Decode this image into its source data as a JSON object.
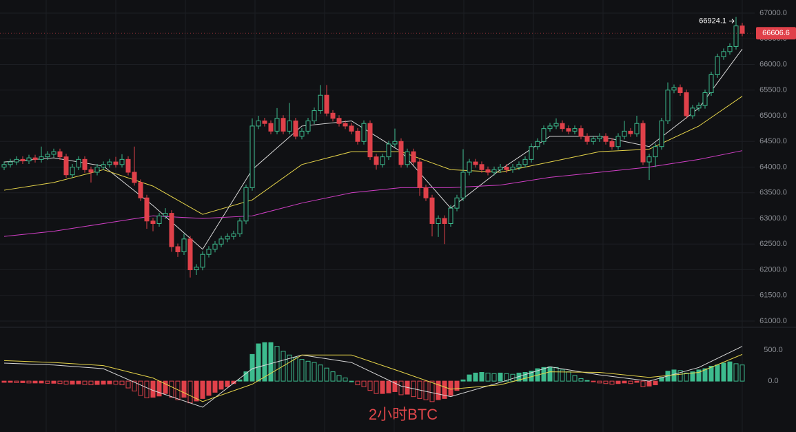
{
  "chart_data": [
    {
      "type": "candlestick",
      "colors": {
        "up": "#3dbb8e",
        "down": "#e0414a"
      },
      "ylim": [
        60880,
        67255
      ],
      "yticks": [
        {
          "value": 61000,
          "label": "61000.0"
        },
        {
          "value": 61500,
          "label": "61500.0"
        },
        {
          "value": 62000,
          "label": "62000.0"
        },
        {
          "value": 62500,
          "label": "62500.0"
        },
        {
          "value": 63000,
          "label": "63000.0"
        },
        {
          "value": 63500,
          "label": "63500.0"
        },
        {
          "value": 64000,
          "label": "64000.0"
        },
        {
          "value": 64500,
          "label": "64500.0"
        },
        {
          "value": 65000,
          "label": "65000.0"
        },
        {
          "value": 65500,
          "label": "65500.0"
        },
        {
          "value": 66000,
          "label": "66000.0"
        },
        {
          "value": 66500,
          "label": "66500.0"
        },
        {
          "value": 67000,
          "label": "67000.0"
        }
      ],
      "grid": true,
      "last_price": 66606.6,
      "high_annotation": 66924.1,
      "open": [
        64000,
        64050,
        64100,
        64150,
        64120,
        64180,
        64150,
        64200,
        64250,
        64300,
        64200,
        63850,
        64000,
        64150,
        63950,
        63900,
        64000,
        64050,
        64100,
        64050,
        64150,
        63900,
        63700,
        63400,
        62950,
        62900,
        63050,
        63100,
        62450,
        62350,
        62600,
        62000,
        62050,
        62300,
        62400,
        62500,
        62600,
        62650,
        62700,
        62950,
        63600,
        64800,
        64900,
        64850,
        64700,
        64950,
        64700,
        64900,
        64600,
        64700,
        64900,
        65100,
        65400,
        65050,
        64950,
        64850,
        64800,
        64700,
        64500,
        64850,
        64200,
        64050,
        64200,
        64450,
        64500,
        64050,
        64300,
        64100,
        63600,
        63400,
        62900,
        63000,
        62900,
        63200,
        63400,
        63900,
        64100,
        64050,
        63950,
        63900,
        63950,
        64000,
        63950,
        64000,
        64050,
        64150,
        64400,
        64500,
        64750,
        64800,
        64850,
        64750,
        64700,
        64750,
        64600,
        64500,
        64550,
        64600,
        64500,
        64400,
        64600,
        64700,
        64650,
        64850,
        64100,
        64200,
        64400,
        64900,
        65500,
        65550,
        65450,
        65000,
        65150,
        65200,
        65450,
        65800,
        66150,
        66250,
        66350,
        66750
      ],
      "high": [
        64110,
        64160,
        64210,
        64210,
        64240,
        64240,
        64400,
        64310,
        64360,
        64360,
        64260,
        64060,
        64210,
        64210,
        64010,
        64060,
        64110,
        64160,
        64200,
        64250,
        64210,
        64400,
        63760,
        63460,
        63010,
        63110,
        63200,
        63160,
        62510,
        62700,
        62660,
        62110,
        62360,
        62460,
        62560,
        62660,
        62710,
        62760,
        63010,
        63660,
        64950,
        65000,
        64960,
        64910,
        65150,
        65010,
        65250,
        64960,
        64760,
        64960,
        65160,
        65600,
        65600,
        65110,
        65010,
        64910,
        64860,
        64760,
        64910,
        64910,
        64260,
        64260,
        64510,
        64750,
        64560,
        64360,
        64360,
        64160,
        63660,
        63460,
        63060,
        63060,
        63260,
        63460,
        64350,
        64160,
        64160,
        64110,
        64010,
        64010,
        64060,
        64060,
        64060,
        64110,
        64210,
        64460,
        64560,
        64810,
        64860,
        64950,
        64910,
        64810,
        64810,
        64810,
        64660,
        64610,
        64660,
        64660,
        64560,
        64660,
        64900,
        64760,
        65000,
        64910,
        64260,
        64460,
        64960,
        65650,
        65610,
        65610,
        65510,
        65210,
        65260,
        65510,
        65860,
        66210,
        66310,
        66410,
        66924.1,
        66810
      ],
      "low": [
        63940,
        63990,
        64040,
        64060,
        64060,
        64090,
        64090,
        64140,
        64190,
        64140,
        63790,
        63790,
        63940,
        63890,
        63700,
        63840,
        63940,
        63990,
        63990,
        63990,
        63840,
        63640,
        63340,
        62800,
        62750,
        62840,
        62990,
        62350,
        62250,
        62290,
        61850,
        61900,
        61990,
        62240,
        62340,
        62440,
        62540,
        62590,
        62640,
        62890,
        63540,
        64740,
        64790,
        64640,
        64640,
        64640,
        64640,
        64540,
        64540,
        64640,
        64840,
        65040,
        64990,
        64890,
        64790,
        64740,
        64640,
        64440,
        64440,
        64140,
        63950,
        63990,
        64140,
        64390,
        63990,
        63990,
        64040,
        63440,
        63340,
        62650,
        62640,
        62500,
        62840,
        63140,
        63340,
        63840,
        63990,
        63890,
        63840,
        63840,
        63890,
        63890,
        63890,
        63940,
        63990,
        64090,
        64340,
        64440,
        64690,
        64740,
        64690,
        64640,
        64640,
        64540,
        64440,
        64440,
        64490,
        64440,
        64340,
        64340,
        64540,
        64590,
        64590,
        64040,
        63750,
        64000,
        64340,
        64840,
        65440,
        65390,
        64940,
        64940,
        65090,
        65140,
        65390,
        65740,
        66090,
        66190,
        66290,
        66550
      ],
      "close": [
        64050,
        64100,
        64150,
        64120,
        64180,
        64150,
        64200,
        64250,
        64300,
        64200,
        63850,
        64000,
        64150,
        63950,
        63900,
        64000,
        64050,
        64100,
        64050,
        64150,
        63900,
        63700,
        63400,
        62950,
        62900,
        63050,
        63100,
        62450,
        62350,
        62600,
        62000,
        62050,
        62300,
        62400,
        62500,
        62600,
        62650,
        62700,
        62950,
        63600,
        64800,
        64900,
        64850,
        64700,
        64950,
        64700,
        64900,
        64600,
        64700,
        64900,
        65100,
        65400,
        65050,
        64950,
        64850,
        64800,
        64700,
        64500,
        64850,
        64200,
        64050,
        64200,
        64450,
        64500,
        64050,
        64300,
        64100,
        63600,
        63400,
        62900,
        63000,
        62900,
        63200,
        63400,
        63900,
        64100,
        64050,
        63950,
        63900,
        63950,
        64000,
        63950,
        64000,
        64050,
        64150,
        64400,
        64500,
        64750,
        64800,
        64850,
        64750,
        64700,
        64750,
        64600,
        64500,
        64550,
        64600,
        64500,
        64400,
        64600,
        64700,
        64650,
        64850,
        64100,
        64200,
        64400,
        64900,
        65500,
        65550,
        65450,
        65000,
        65150,
        65200,
        65450,
        65800,
        66150,
        66250,
        66350,
        66750,
        66606.6
      ],
      "lines": {
        "x": [
          0,
          8,
          16,
          24,
          32,
          40,
          48,
          56,
          64,
          72,
          80,
          88,
          96,
          104,
          112,
          119
        ],
        "series": [
          {
            "color": "#d9d9d9",
            "values": [
              64100,
              64180,
              64020,
              63250,
              62400,
              63950,
              64800,
              64900,
              64300,
              63200,
              63950,
              64600,
              64600,
              64400,
              65150,
              66300
            ]
          },
          {
            "color": "#e6d44a",
            "values": [
              63550,
              63700,
              63950,
              63630,
              63080,
              63360,
              64050,
              64300,
              64300,
              63950,
              63900,
              64100,
              64300,
              64350,
              64800,
              65380
            ]
          },
          {
            "color": "#d13fc6",
            "values": [
              62650,
              62750,
              62900,
              63050,
              63000,
              63050,
              63300,
              63500,
              63600,
              63600,
              63650,
              63800,
              63900,
              64000,
              64150,
              64320
            ]
          }
        ]
      }
    },
    {
      "type": "macd",
      "colors": {
        "up": "#3dbb8e",
        "down": "#e0414a"
      },
      "ylim": [
        -520,
        867
      ],
      "yticks": [
        {
          "value": 0,
          "label": "0.0"
        },
        {
          "value": 500,
          "label": "500.0"
        }
      ],
      "values": [
        -20,
        -20,
        -25,
        -25,
        -30,
        -30,
        -30,
        -35,
        -35,
        -40,
        -50,
        -50,
        -45,
        -55,
        -60,
        -55,
        -50,
        -45,
        -50,
        -60,
        -110,
        -160,
        -230,
        -270,
        -260,
        -240,
        -200,
        -260,
        -300,
        -260,
        -350,
        -320,
        -280,
        -230,
        -180,
        -130,
        -90,
        -40,
        20,
        150,
        430,
        600,
        620,
        620,
        560,
        480,
        420,
        380,
        350,
        320,
        300,
        260,
        210,
        150,
        90,
        50,
        0,
        -60,
        -90,
        -150,
        -200,
        -200,
        -190,
        -170,
        -220,
        -210,
        -250,
        -280,
        -300,
        -330,
        -300,
        -280,
        -230,
        -150,
        20,
        100,
        130,
        140,
        130,
        120,
        130,
        120,
        110,
        130,
        140,
        160,
        200,
        220,
        230,
        220,
        180,
        150,
        90,
        40,
        10,
        -10,
        -30,
        -40,
        -50,
        -40,
        -30,
        -40,
        -20,
        -90,
        -80,
        -60,
        60,
        160,
        180,
        170,
        130,
        150,
        180,
        200,
        240,
        260,
        290,
        310,
        280,
        260
      ],
      "lines": {
        "x": [
          0,
          8,
          16,
          24,
          32,
          40,
          48,
          56,
          64,
          72,
          80,
          88,
          96,
          104,
          112,
          119
        ],
        "series": [
          {
            "color": "#d9d9d9",
            "values": [
              290,
              260,
              200,
              -150,
              -420,
              200,
              420,
              300,
              -80,
              -250,
              -20,
              230,
              100,
              0,
              220,
              560
            ]
          },
          {
            "color": "#e6d44a",
            "values": [
              330,
              300,
              250,
              50,
              -330,
              -50,
              420,
              420,
              150,
              -130,
              -60,
              150,
              140,
              60,
              140,
              430
            ]
          }
        ]
      }
    }
  ],
  "watermark": "2小时BTC"
}
